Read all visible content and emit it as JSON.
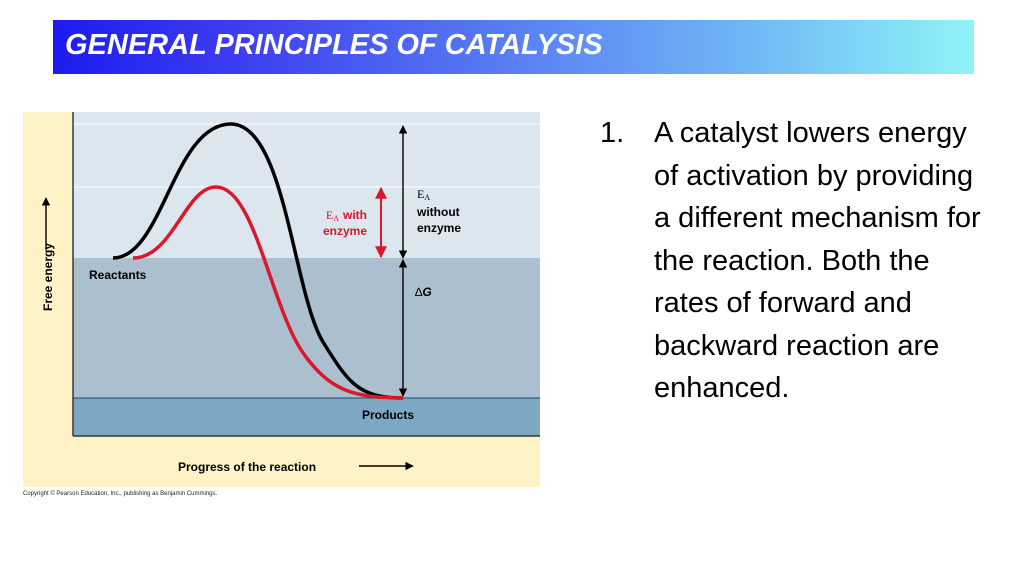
{
  "title": "GENERAL PRINCIPLES OF CATALYSIS",
  "diagram": {
    "y_axis_label": "Free energy",
    "x_axis_label": "Progress of the reaction",
    "reactants_label": "Reactants",
    "products_label": "Products",
    "ea_without": {
      "symbol": "E",
      "subscript": "A",
      "line1": "without",
      "line2": "enzyme"
    },
    "ea_with": {
      "symbol": "E",
      "subscript": "A",
      "line1": "with",
      "line2": "enzyme"
    },
    "delta_g": {
      "delta": "∆",
      "g": "G"
    },
    "curve_colors": {
      "uncatalyzed": "#000000",
      "catalyzed": "#d7192b"
    },
    "band_colors": {
      "upper": "#dbe6ee",
      "middle": "#abbfcf",
      "products": "#7ea7c4",
      "frame": "#fdf3c6"
    }
  },
  "copyright": "Copyright © Pearson Education, Inc., publishing as Benjamin Cummings.",
  "bullet": {
    "number": "1.",
    "text": "A catalyst lowers energy of activation by providing a different mechanism for the reaction. Both the rates of forward and backward reaction are enhanced."
  }
}
